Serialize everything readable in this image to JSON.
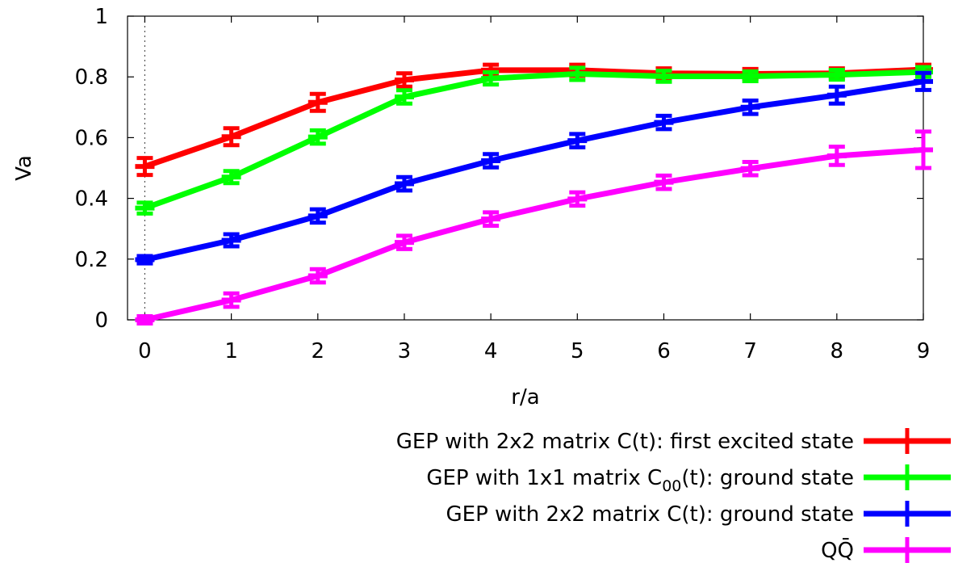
{
  "chart_data": {
    "type": "line",
    "xlabel": "r/a",
    "ylabel": "Va",
    "xlim": [
      -0.2,
      9
    ],
    "ylim": [
      0,
      1
    ],
    "x_ticks": [
      "0",
      "1",
      "2",
      "3",
      "4",
      "5",
      "6",
      "7",
      "8",
      "9"
    ],
    "y_ticks": [
      "0",
      "0.2",
      "0.4",
      "0.6",
      "0.8",
      "1"
    ],
    "grid": false,
    "reference_line": {
      "x": 0,
      "style": "dotted"
    },
    "legend_position": "bottom-right, below plot",
    "series": [
      {
        "name": "GEP with 2x2 matrix C(t): first excited state",
        "legend_parts": [
          "GEP with 2x2 matrix C(t): first excited state"
        ],
        "color": "#ff0000",
        "x": [
          0,
          1,
          2,
          3,
          4,
          5,
          6,
          7,
          8,
          9
        ],
        "values": [
          0.505,
          0.603,
          0.716,
          0.79,
          0.822,
          0.822,
          0.812,
          0.81,
          0.812,
          0.824
        ],
        "errors": [
          0.028,
          0.028,
          0.028,
          0.022,
          0.018,
          0.018,
          0.016,
          0.016,
          0.016,
          0.016
        ]
      },
      {
        "name": "GEP with 1x1 matrix C00(t): ground state",
        "legend_parts": [
          "GEP with 1x1 matrix C",
          "00",
          "(t): ground state"
        ],
        "color": "#00ff00",
        "x": [
          0,
          1,
          2,
          3,
          4,
          5,
          6,
          7,
          8,
          9
        ],
        "values": [
          0.368,
          0.47,
          0.602,
          0.734,
          0.795,
          0.81,
          0.802,
          0.802,
          0.807,
          0.816
        ],
        "errors": [
          0.018,
          0.02,
          0.022,
          0.022,
          0.02,
          0.02,
          0.018,
          0.016,
          0.016,
          0.016
        ]
      },
      {
        "name": "GEP with 2x2 matrix C(t): ground state",
        "legend_parts": [
          "GEP with 2x2 matrix C(t): ground state"
        ],
        "color": "#0000ff",
        "x": [
          0,
          1,
          2,
          3,
          4,
          5,
          6,
          7,
          8,
          9
        ],
        "values": [
          0.198,
          0.262,
          0.342,
          0.448,
          0.524,
          0.59,
          0.65,
          0.7,
          0.74,
          0.785
        ],
        "errors": [
          0.012,
          0.02,
          0.022,
          0.022,
          0.022,
          0.022,
          0.022,
          0.022,
          0.028,
          0.028
        ]
      },
      {
        "name": "QQ̄",
        "legend_parts": [
          "QQ̄"
        ],
        "color": "#ff00ff",
        "x": [
          0,
          1,
          2,
          3,
          4,
          5,
          6,
          7,
          8,
          9
        ],
        "values": [
          0.0,
          0.065,
          0.145,
          0.255,
          0.332,
          0.398,
          0.453,
          0.498,
          0.54,
          0.56
        ],
        "errors": [
          0.012,
          0.022,
          0.022,
          0.022,
          0.022,
          0.022,
          0.022,
          0.022,
          0.03,
          0.06
        ]
      }
    ]
  }
}
